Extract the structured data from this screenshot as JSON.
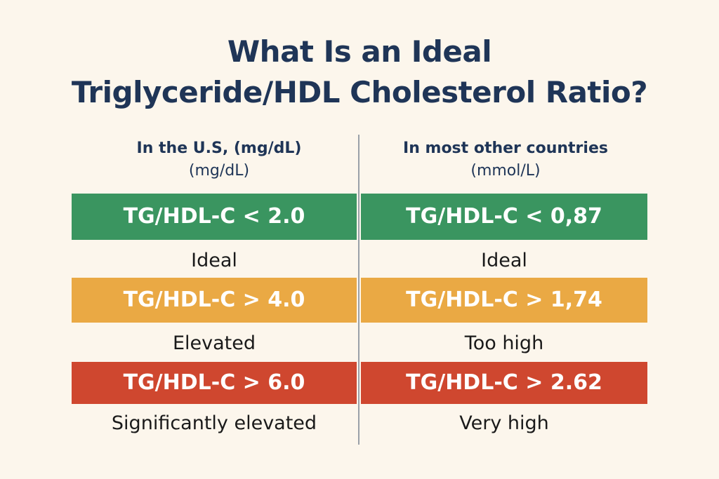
{
  "title": {
    "line1": "What Is an Ideal",
    "line2": "Triglyceride/HDL Cholesterol Ratio?"
  },
  "columns": {
    "us": {
      "heading": "In the U.S, (mg/dL)",
      "unit": "(mg/dL)"
    },
    "other": {
      "heading": "In most other countries",
      "unit": "(mmol/L)"
    }
  },
  "rows": [
    {
      "color": "#3a9560",
      "us_value": "TG/HDL-C < 2.0",
      "other_value": "TG/HDL-C < 0,87",
      "us_label": "Ideal",
      "other_label": "Ideal"
    },
    {
      "color": "#eaa944",
      "us_value": "TG/HDL-C > 4.0",
      "other_value": "TG/HDL-C > 1,74",
      "us_label": "Elevated",
      "other_label": "Too high"
    },
    {
      "color": "#cf472f",
      "us_value": "TG/HDL-C > 6.0",
      "other_value": "TG/HDL-C > 2.62",
      "us_label": "Significantly elevated",
      "other_label": "Very high"
    }
  ]
}
